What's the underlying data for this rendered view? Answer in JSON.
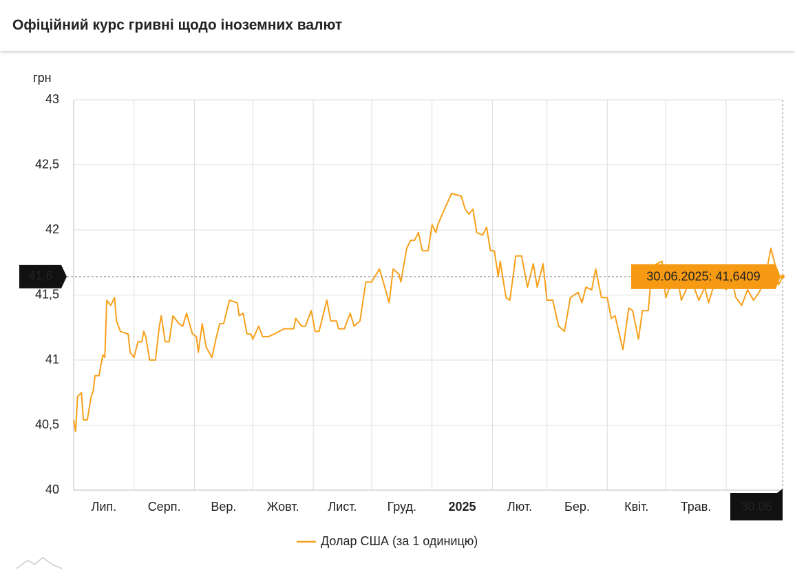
{
  "chart_data": {
    "type": "line",
    "title": "Офіційний курс гривні щодо іноземних валют",
    "y_label": "грн",
    "x": [
      "01.07.2024",
      "02.07.2024",
      "03.07.2024",
      "05.07.2024",
      "06.07.2024",
      "08.07.2024",
      "10.07.2024",
      "11.07.2024",
      "12.07.2024",
      "14.07.2024",
      "16.07.2024",
      "17.07.2024",
      "18.07.2024",
      "20.07.2024",
      "22.07.2024",
      "23.07.2024",
      "25.07.2024",
      "29.07.2024",
      "30.07.2024",
      "01.08.2024",
      "03.08.2024",
      "05.08.2024",
      "06.08.2024",
      "07.08.2024",
      "09.08.2024",
      "12.08.2024",
      "14.08.2024",
      "15.08.2024",
      "17.08.2024",
      "19.08.2024",
      "21.08.2024",
      "24.08.2024",
      "26.08.2024",
      "28.08.2024",
      "31.08.2024",
      "02.09.2024",
      "03.09.2024",
      "05.09.2024",
      "07.09.2024",
      "10.09.2024",
      "12.09.2024",
      "14.09.2024",
      "16.09.2024",
      "19.09.2024",
      "23.09.2024",
      "24.09.2024",
      "26.09.2024",
      "28.09.2024",
      "30.09.2024",
      "01.10.2024",
      "04.10.2024",
      "06.10.2024",
      "09.10.2024",
      "12.10.2024",
      "17.10.2024",
      "22.10.2024",
      "23.10.2024",
      "26.10.2024",
      "28.10.2024",
      "31.10.2024",
      "02.11.2024",
      "04.11.2024",
      "07.11.2024",
      "08.11.2024",
      "10.11.2024",
      "13.11.2024",
      "14.11.2024",
      "17.11.2024",
      "20.11.2024",
      "22.11.2024",
      "25.11.2024",
      "28.11.2024",
      "01.12.2024",
      "05.12.2024",
      "07.12.2024",
      "10.12.2024",
      "12.12.2024",
      "15.12.2024",
      "16.12.2024",
      "19.12.2024",
      "21.12.2024",
      "23.12.2024",
      "25.12.2024",
      "27.12.2024",
      "30.12.2024",
      "01.01.2025",
      "03.01.2025",
      "04.01.2025",
      "08.01.2025",
      "11.01.2025",
      "16.01.2025",
      "18.01.2025",
      "20.01.2025",
      "22.01.2025",
      "24.01.2025",
      "27.01.2025",
      "29.01.2025",
      "31.01.2025",
      "02.02.2025",
      "04.02.2025",
      "05.02.2025",
      "08.02.2025",
      "10.02.2025",
      "13.02.2025",
      "16.02.2025",
      "19.02.2025",
      "22.02.2025",
      "24.02.2025",
      "27.02.2025",
      "01.03.2025",
      "04.03.2025",
      "07.03.2025",
      "10.03.2025",
      "13.03.2025",
      "17.03.2025",
      "19.03.2025",
      "21.03.2025",
      "24.03.2025",
      "26.03.2025",
      "29.03.2025",
      "01.04.2025",
      "03.04.2025",
      "05.04.2025",
      "09.04.2025",
      "12.04.2025",
      "14.04.2025",
      "17.04.2025",
      "19.04.2025",
      "22.04.2025",
      "24.04.2025",
      "29.04.2025",
      "01.05.2025",
      "04.05.2025",
      "06.05.2025",
      "09.05.2025",
      "12.05.2025",
      "15.05.2025",
      "18.05.2025",
      "21.05.2025",
      "23.05.2025",
      "25.05.2025",
      "28.05.2025",
      "01.06.2025",
      "04.06.2025",
      "06.06.2025",
      "09.06.2025",
      "12.06.2025",
      "15.06.2025",
      "18.06.2025",
      "21.06.2025",
      "24.06.2025",
      "26.06.2025",
      "28.06.2025",
      "30.06.2025"
    ],
    "series": [
      {
        "name": "Долар США (за 1 одиницю)",
        "color": "#f7a01a",
        "values": [
          40.54,
          40.45,
          40.72,
          40.75,
          40.54,
          40.54,
          40.72,
          40.76,
          40.88,
          40.88,
          41.04,
          41.02,
          41.46,
          41.42,
          41.48,
          41.3,
          41.22,
          41.2,
          41.06,
          41.02,
          41.14,
          41.14,
          41.22,
          41.18,
          41.0,
          41.0,
          41.26,
          41.34,
          41.14,
          41.14,
          41.34,
          41.28,
          41.26,
          41.36,
          41.2,
          41.18,
          41.06,
          41.28,
          41.1,
          41.02,
          41.16,
          41.28,
          41.28,
          41.46,
          41.44,
          41.34,
          41.36,
          41.2,
          41.2,
          41.16,
          41.26,
          41.18,
          41.18,
          41.2,
          41.24,
          41.24,
          41.32,
          41.26,
          41.26,
          41.38,
          41.22,
          41.22,
          41.4,
          41.46,
          41.3,
          41.3,
          41.24,
          41.24,
          41.36,
          41.26,
          41.3,
          41.6,
          41.6,
          41.7,
          41.6,
          41.44,
          41.7,
          41.66,
          41.6,
          41.86,
          41.92,
          41.92,
          41.98,
          41.84,
          41.84,
          42.04,
          41.98,
          42.04,
          42.18,
          42.28,
          42.26,
          42.16,
          42.12,
          42.16,
          41.98,
          41.96,
          42.02,
          41.84,
          41.84,
          41.64,
          41.76,
          41.48,
          41.46,
          41.8,
          41.8,
          41.56,
          41.74,
          41.56,
          41.74,
          41.46,
          41.46,
          41.26,
          41.22,
          41.48,
          41.52,
          41.44,
          41.56,
          41.54,
          41.7,
          41.48,
          41.48,
          41.32,
          41.34,
          41.08,
          41.4,
          41.38,
          41.16,
          41.38,
          41.38,
          41.72,
          41.76,
          41.48,
          41.6,
          41.72,
          41.46,
          41.56,
          41.58,
          41.46,
          41.56,
          41.44,
          41.54,
          41.62,
          41.54,
          41.62,
          41.48,
          41.42,
          41.54,
          41.46,
          41.52,
          41.62,
          41.86,
          41.74,
          41.58,
          41.6409
        ]
      }
    ],
    "xlim": [
      "01.07.2024",
      "30.06.2025"
    ],
    "xticks": [
      {
        "value": "01.07.2024",
        "label": "Лип."
      },
      {
        "value": "01.08.2024",
        "label": "Серп."
      },
      {
        "value": "01.09.2024",
        "label": "Вер."
      },
      {
        "value": "01.10.2024",
        "label": "Жовт."
      },
      {
        "value": "01.11.2024",
        "label": "Лист."
      },
      {
        "value": "01.12.2024",
        "label": "Груд."
      },
      {
        "value": "01.01.2025",
        "label": "2025"
      },
      {
        "value": "01.02.2025",
        "label": "Лют."
      },
      {
        "value": "01.03.2025",
        "label": "Бер."
      },
      {
        "value": "01.04.2025",
        "label": "Квіт."
      },
      {
        "value": "01.05.2025",
        "label": "Трав."
      },
      {
        "value": "01.06.2025",
        "label": null
      }
    ],
    "ylim": [
      40,
      43
    ],
    "yticks": [
      40,
      {
        "value": 40.5,
        "label": "40,5"
      },
      41,
      {
        "value": 41.5,
        "label": "41,5"
      },
      42,
      {
        "value": 42.5,
        "label": "42,5"
      },
      43
    ],
    "grid": true,
    "crosshair": {
      "y_label": "41,6",
      "x_label": "30.06",
      "tooltip": "30.06.2025: 41,6409"
    }
  }
}
